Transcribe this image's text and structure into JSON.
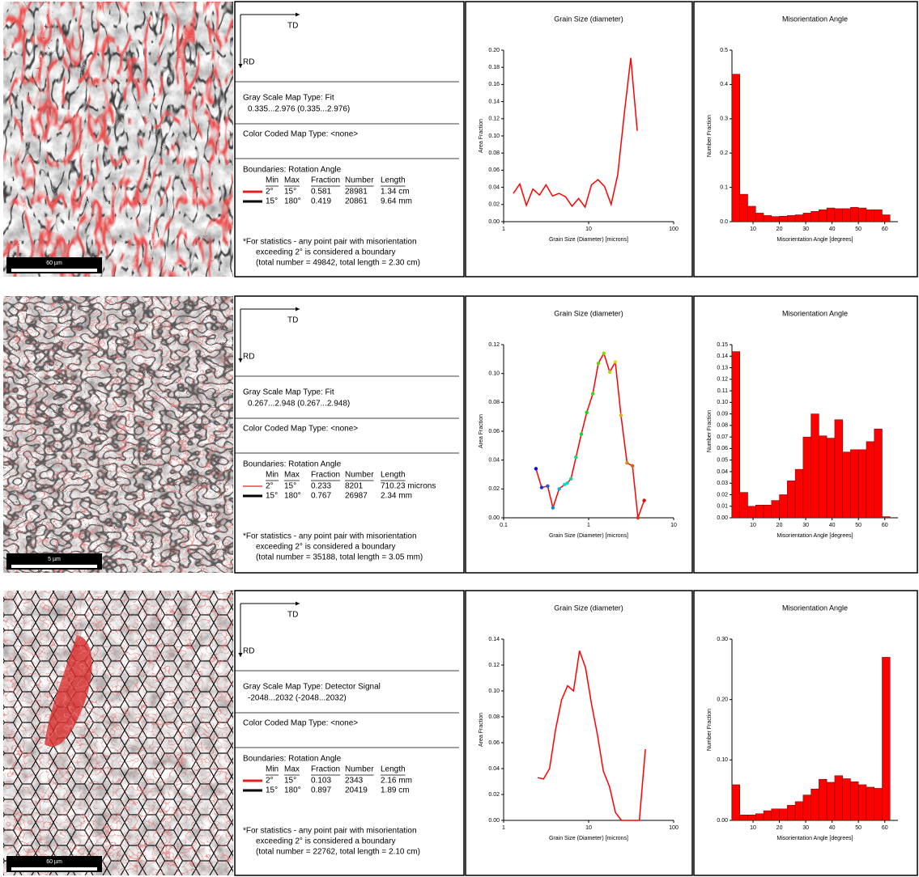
{
  "rows": [
    {
      "image": {
        "scale_bar": "60 µm"
      },
      "info": {
        "td": "TD",
        "rd": "RD",
        "gray_scale": "Gray Scale Map Type: Fit",
        "gray_range": "0.335...2.976 (0.335...2.976)",
        "color_coded": "Color Coded Map Type: <none>",
        "boundaries": "Boundaries: Rotation Angle",
        "table": {
          "header": [
            "Min",
            "Max",
            "Fraction",
            "Number",
            "Length"
          ],
          "rows": [
            [
              "2°",
              "15°",
              "0.581",
              "28981",
              "1.34 cm"
            ],
            [
              "15°",
              "180°",
              "0.419",
              "20861",
              "9.64 mm"
            ]
          ]
        },
        "note": [
          "*For statistics - any point pair with misorientation",
          "exceeding 2° is considered a boundary",
          "(total number = 49842, total length = 2.30 cm)"
        ]
      }
    },
    {
      "image": {
        "scale_bar": "5 µm"
      },
      "info": {
        "td": "TD",
        "rd": "RD",
        "gray_scale": "Gray Scale Map Type: Fit",
        "gray_range": "0.267...2.948 (0.267...2.948)",
        "color_coded": "Color Coded Map Type: <none>",
        "boundaries": "Boundaries: Rotation Angle",
        "table": {
          "header": [
            "Min",
            "Max",
            "Fraction",
            "Number",
            "Length"
          ],
          "rows": [
            [
              "2°",
              "15°",
              "0.233",
              "8201",
              "710.23 microns"
            ],
            [
              "15°",
              "180°",
              "0.767",
              "26987",
              "2.34 mm"
            ]
          ]
        },
        "note": [
          "*For statistics - any point pair with misorientation",
          "exceeding 2° is considered a boundary",
          "(total number = 35188, total length = 3.05 mm)"
        ]
      }
    },
    {
      "image": {
        "scale_bar": "60 µm"
      },
      "info": {
        "td": "TD",
        "rd": "RD",
        "gray_scale": "Gray Scale Map Type: Detector Signal",
        "gray_range": "-2048...2032 (-2048...2032)",
        "color_coded": "Color Coded Map Type: <none>",
        "boundaries": "Boundaries: Rotation Angle",
        "table": {
          "header": [
            "Min",
            "Max",
            "Fraction",
            "Number",
            "Length"
          ],
          "rows": [
            [
              "2°",
              "15°",
              "0.103",
              "2343",
              "2.16 mm"
            ],
            [
              "15°",
              "180°",
              "0.897",
              "20419",
              "1.89 cm"
            ]
          ]
        },
        "note": [
          "*For statistics - any point pair with misorientation",
          "exceeding 2° is considered a boundary",
          "(total number = 22762, total length = 2.10 cm)"
        ]
      }
    }
  ],
  "chart_data": [
    {
      "type": "line",
      "title": "Grain Size (diameter)",
      "x_label": "Grain Size (Diameter) [microns]",
      "y_label": "Area Fraction",
      "color": "#ff0000",
      "log_x": true,
      "x": [
        1.3,
        1.55,
        1.85,
        2.21,
        2.64,
        3.15,
        3.76,
        4.48,
        5.35,
        6.38,
        7.62,
        9.09,
        10.8,
        12.9,
        15.4,
        18.4,
        22.0,
        26.2,
        31.3,
        37.3
      ],
      "values": [
        0.033,
        0.044,
        0.019,
        0.038,
        0.031,
        0.043,
        0.03,
        0.033,
        0.029,
        0.018,
        0.027,
        0.017,
        0.043,
        0.049,
        0.041,
        0.02,
        0.055,
        0.125,
        0.191,
        0.106
      ],
      "xlim": [
        1,
        100
      ],
      "xticks": [
        1,
        10,
        100
      ],
      "ylim": [
        0,
        0.2
      ],
      "yticks": [
        {
          "value": 0,
          "label": "0.00"
        },
        0.02,
        0.04,
        0.06,
        0.08,
        {
          "value": 0.1,
          "label": "0.10"
        },
        0.12,
        0.14,
        0.16,
        0.18,
        {
          "value": 0.2,
          "label": "0.20"
        }
      ]
    },
    {
      "type": "histogram",
      "title": "Misorientation Angle",
      "x_label": "Misorientation Angle [degrees]",
      "y_label": "Number Fraction",
      "color": "#ff0000",
      "bins": [
        2,
        5,
        8,
        11,
        14,
        17,
        20,
        23,
        26,
        29,
        32,
        35,
        38,
        41,
        44,
        47,
        50,
        53,
        56,
        59,
        62
      ],
      "values": [
        0.43,
        0.08,
        0.045,
        0.025,
        0.018,
        0.015,
        0.016,
        0.018,
        0.02,
        0.025,
        0.03,
        0.035,
        0.04,
        0.038,
        0.038,
        0.042,
        0.04,
        0.035,
        0.035,
        0.02
      ],
      "xlim": [
        2,
        65
      ],
      "xticks": [
        10,
        20,
        30,
        40,
        50,
        60
      ],
      "ylim": [
        0,
        0.5
      ],
      "yticks": [
        {
          "value": 0,
          "label": "0.0"
        },
        0.1,
        0.2,
        0.3,
        0.4,
        0.5
      ]
    },
    {
      "type": "line",
      "title": "Grain Size (diameter)",
      "x_label": "Grain Size (Diameter) [microns]",
      "y_label": "Area Fraction",
      "color": "#ff0000",
      "log_x": true,
      "markers": true,
      "x": [
        0.24,
        0.28,
        0.33,
        0.38,
        0.45,
        0.52,
        0.56,
        0.62,
        0.71,
        0.82,
        0.95,
        1.12,
        1.3,
        1.51,
        1.77,
        2.06,
        2.4,
        2.83,
        3.28,
        3.8,
        4.5
      ],
      "values": [
        0.034,
        0.021,
        0.022,
        0.007,
        0.02,
        0.023,
        0.024,
        0.027,
        0.042,
        0.058,
        0.073,
        0.086,
        0.107,
        0.114,
        0.101,
        0.108,
        0.071,
        0.038,
        0.036,
        0.0,
        0.012
      ],
      "xlim": [
        0.1,
        10
      ],
      "xticks": [
        0.1,
        1,
        10
      ],
      "ylim": [
        0,
        0.12
      ],
      "yticks": [
        {
          "value": 0,
          "label": "0.00"
        },
        0.02,
        0.04,
        0.06,
        0.08,
        {
          "value": 0.1,
          "label": "0.10"
        },
        0.12
      ]
    },
    {
      "type": "histogram",
      "title": "Misorientation Angle",
      "x_label": "Misorientation Angle [degrees]",
      "y_label": "Number Fraction",
      "color": "#ff0000",
      "bins": [
        2,
        5,
        8,
        11,
        14,
        17,
        20,
        23,
        26,
        29,
        32,
        35,
        38,
        41,
        44,
        47,
        50,
        53,
        56,
        59,
        62
      ],
      "values": [
        0.144,
        0.022,
        0.01,
        0.011,
        0.011,
        0.015,
        0.02,
        0.032,
        0.042,
        0.07,
        0.09,
        0.071,
        0.069,
        0.085,
        0.057,
        0.059,
        0.059,
        0.066,
        0.077,
        0.001
      ],
      "xlim": [
        2,
        65
      ],
      "xticks": [
        10,
        20,
        30,
        40,
        50,
        60
      ],
      "ylim": [
        0,
        0.15
      ],
      "yticks": [
        {
          "value": 0,
          "label": "0.00"
        },
        0.01,
        0.02,
        0.03,
        0.04,
        0.05,
        0.06,
        0.07,
        0.08,
        0.09,
        {
          "value": 0.1,
          "label": "0.10"
        },
        0.11,
        0.12,
        0.13,
        0.14,
        0.15
      ]
    },
    {
      "type": "line",
      "title": "Grain Size (diameter)",
      "x_label": "Grain Size (Diameter) [microns]",
      "y_label": "Area Fraction",
      "color": "#ff0000",
      "log_x": true,
      "x": [
        2.51,
        2.95,
        3.47,
        4.08,
        4.8,
        5.65,
        6.64,
        7.81,
        9.19,
        10.8,
        12.7,
        14.9,
        17.6,
        20.7,
        24.3,
        28.6,
        33.6,
        39.5,
        46.5
      ],
      "values": [
        0.033,
        0.032,
        0.04,
        0.07,
        0.093,
        0.104,
        0.1,
        0.131,
        0.118,
        0.09,
        0.066,
        0.038,
        0.026,
        0.006,
        0.0,
        0.0,
        0.0,
        0.0,
        0.055
      ],
      "xlim": [
        1,
        100
      ],
      "xticks": [
        1,
        10,
        100
      ],
      "ylim": [
        0,
        0.14
      ],
      "yticks": [
        {
          "value": 0,
          "label": "0.00"
        },
        0.02,
        0.04,
        0.06,
        0.08,
        {
          "value": 0.1,
          "label": "0.10"
        },
        0.12,
        0.14
      ]
    },
    {
      "type": "histogram",
      "title": "Misorientation Angle",
      "x_label": "Misorientation Angle [degrees]",
      "y_label": "Number Fraction",
      "color": "#ff0000",
      "bins": [
        2,
        5,
        8,
        11,
        14,
        17,
        20,
        23,
        26,
        29,
        32,
        35,
        38,
        41,
        44,
        47,
        50,
        53,
        56,
        59,
        62
      ],
      "values": [
        0.059,
        0.009,
        0.009,
        0.011,
        0.016,
        0.019,
        0.019,
        0.025,
        0.031,
        0.042,
        0.052,
        0.068,
        0.063,
        0.074,
        0.069,
        0.064,
        0.059,
        0.055,
        0.053,
        0.27
      ],
      "xlim": [
        2,
        65
      ],
      "xticks": [
        10,
        20,
        30,
        40,
        50,
        60
      ],
      "ylim": [
        0,
        0.3
      ],
      "yticks": [
        {
          "value": 0,
          "label": "0.00"
        },
        {
          "value": 0.1,
          "label": "0.10"
        },
        {
          "value": 0.2,
          "label": "0.20"
        },
        {
          "value": 0.3,
          "label": "0.30"
        }
      ]
    }
  ]
}
